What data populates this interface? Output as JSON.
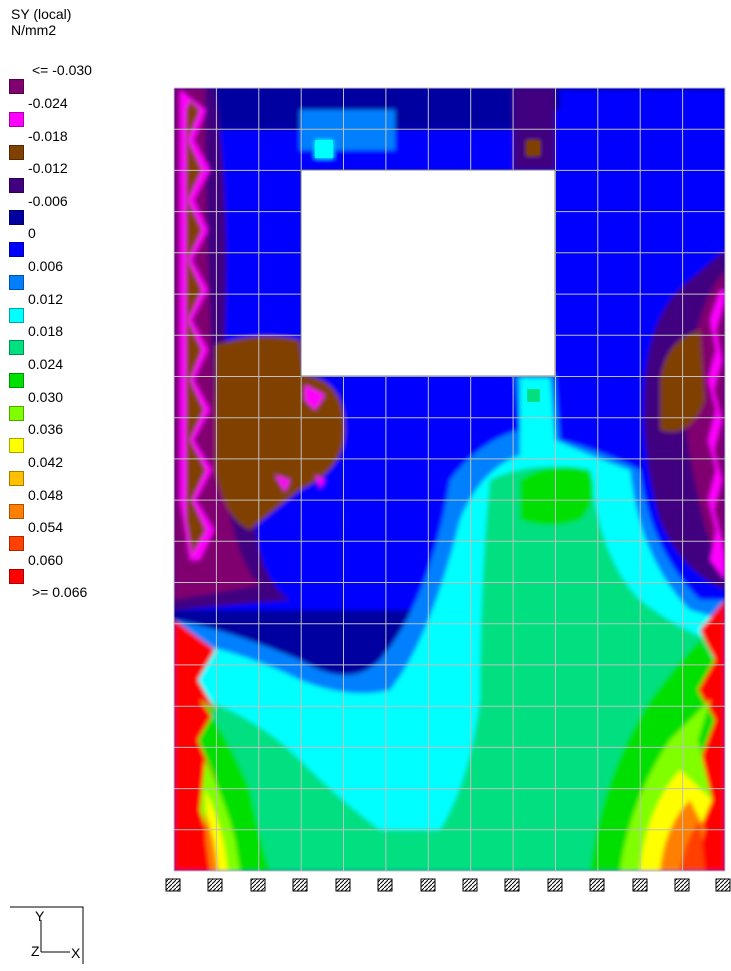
{
  "legend": {
    "quantity": "SY (local)",
    "unit": "N/mm2",
    "entries": [
      {
        "label": "<= -0.030",
        "color": "#800070"
      },
      {
        "label": "-0.024",
        "color": "#ff00ff"
      },
      {
        "label": "-0.018",
        "color": "#804000"
      },
      {
        "label": "-0.012",
        "color": "#400080"
      },
      {
        "label": "-0.006",
        "color": "#0000a0"
      },
      {
        "label": "0",
        "color": "#0000ff"
      },
      {
        "label": "0.006",
        "color": "#0080ff"
      },
      {
        "label": "0.012",
        "color": "#00ffff"
      },
      {
        "label": "0.018",
        "color": "#00e080"
      },
      {
        "label": "0.024",
        "color": "#00e000"
      },
      {
        "label": "0.030",
        "color": "#80ff00"
      },
      {
        "label": "0.036",
        "color": "#ffff00"
      },
      {
        "label": "0.042",
        "color": "#ffc000"
      },
      {
        "label": "0.048",
        "color": "#ff8000"
      },
      {
        "label": "0.054",
        "color": "#ff4000"
      },
      {
        "label": "0.060",
        "color": "#ff0000"
      },
      {
        "label": ">= 0.066",
        "color": ""
      }
    ]
  },
  "axes_glyph": {
    "vertical": "Y",
    "depth": "Z",
    "horizontal": "X"
  },
  "colors": {
    "mesh": "#c0c0c0",
    "support": "#000000",
    "opening": "#ffffff"
  }
}
